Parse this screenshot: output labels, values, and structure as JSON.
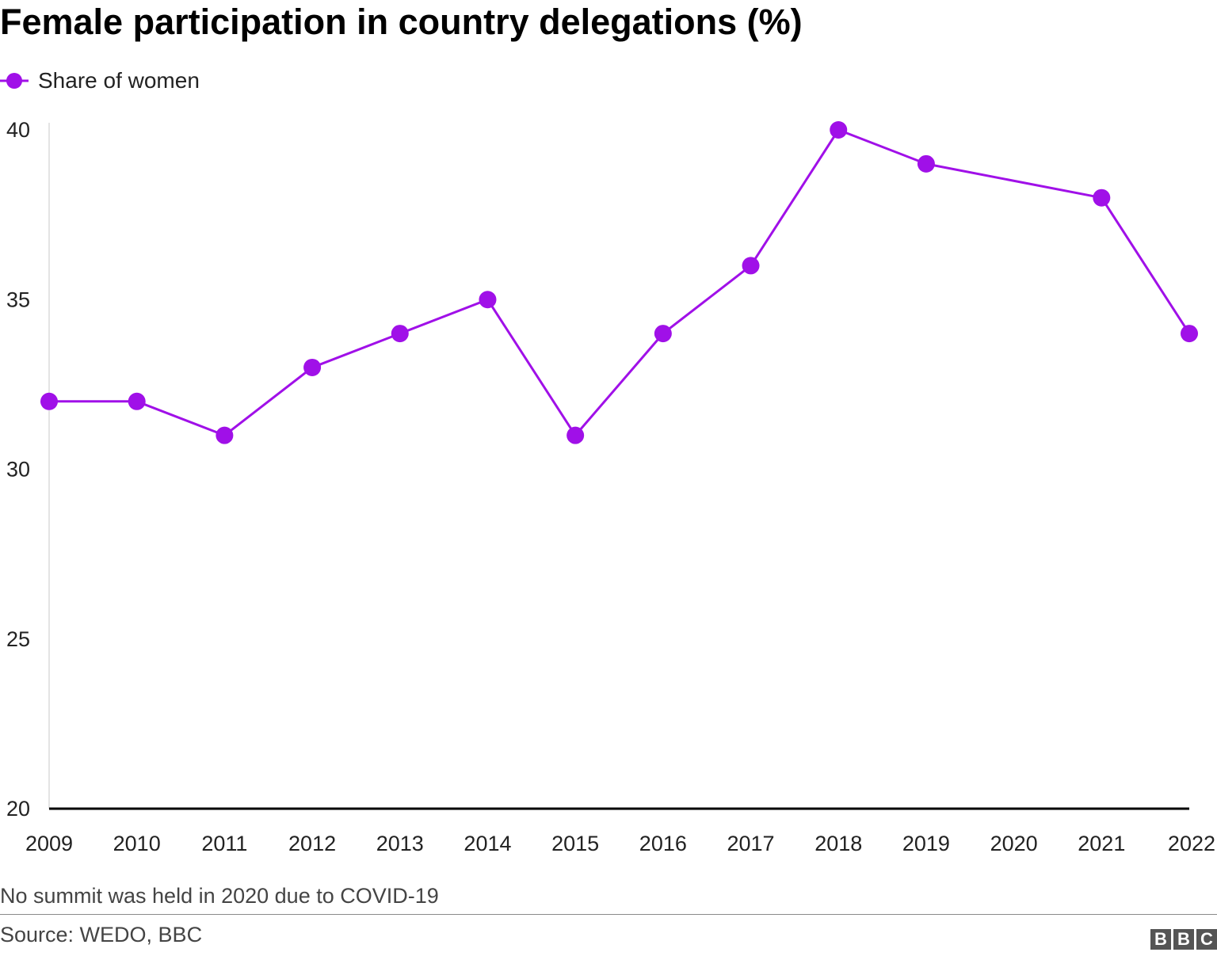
{
  "chart_data": {
    "type": "line",
    "title": "Female participation in country delegations (%)",
    "xlabel": "",
    "ylabel": "",
    "x": [
      "2009",
      "2010",
      "2011",
      "2012",
      "2013",
      "2014",
      "2015",
      "2016",
      "2017",
      "2018",
      "2019",
      "2020",
      "2021",
      "2022"
    ],
    "series": [
      {
        "name": "Share of women",
        "points": [
          {
            "x": "2009",
            "y": 32
          },
          {
            "x": "2010",
            "y": 32
          },
          {
            "x": "2011",
            "y": 31
          },
          {
            "x": "2012",
            "y": 33
          },
          {
            "x": "2013",
            "y": 34
          },
          {
            "x": "2014",
            "y": 35
          },
          {
            "x": "2015",
            "y": 31
          },
          {
            "x": "2016",
            "y": 34
          },
          {
            "x": "2017",
            "y": 36
          },
          {
            "x": "2018",
            "y": 40
          },
          {
            "x": "2019",
            "y": 39
          },
          {
            "x": "2021",
            "y": 38
          },
          {
            "x": "2022",
            "y": 34
          }
        ]
      }
    ],
    "ylim": [
      20,
      40
    ],
    "yticks": [
      20,
      25,
      30,
      35,
      40
    ],
    "grid": false,
    "legend": "top-left"
  },
  "note": "No summit was held in 2020 due to COVID-19",
  "source": "Source: WEDO, BBC",
  "logo": {
    "letters": [
      "B",
      "B",
      "C"
    ]
  },
  "colors": {
    "series": "#a010e8",
    "axis": "#000000",
    "text": "#222222"
  }
}
